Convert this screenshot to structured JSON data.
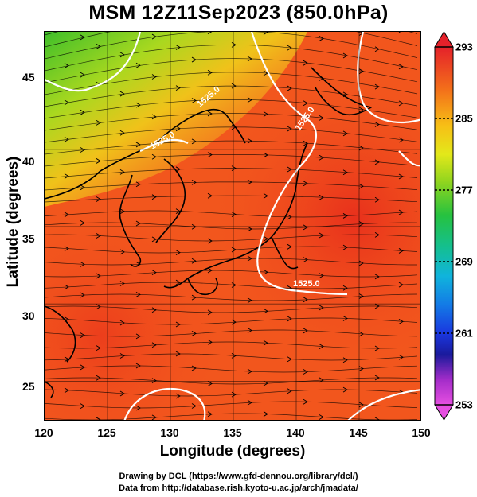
{
  "title": "MSM 12Z11Sep2023 (850.0hPa)",
  "x_axis": {
    "label": "Longitude (degrees)",
    "ticks": [
      "120",
      "125",
      "130",
      "135",
      "140",
      "145",
      "150"
    ],
    "range": [
      120,
      150
    ]
  },
  "y_axis": {
    "label": "Latitude  (degrees)",
    "ticks": [
      "25",
      "30",
      "35",
      "40",
      "45"
    ],
    "range": [
      22.4,
      47.6
    ]
  },
  "colorbar": {
    "ticks": [
      "293",
      "285",
      "277",
      "269",
      "261",
      "253"
    ],
    "range": [
      253,
      293
    ]
  },
  "contour_labels": [
    "1525.0",
    "1525.0",
    "1525.0",
    "1525.0"
  ],
  "credits": {
    "line1": "Drawing by DCL (https://www.gfd-dennou.org/library/dcl/)",
    "line2": "Data from http://database.rish.kyoto-u.ac.jp/arch/jmadata/"
  }
}
